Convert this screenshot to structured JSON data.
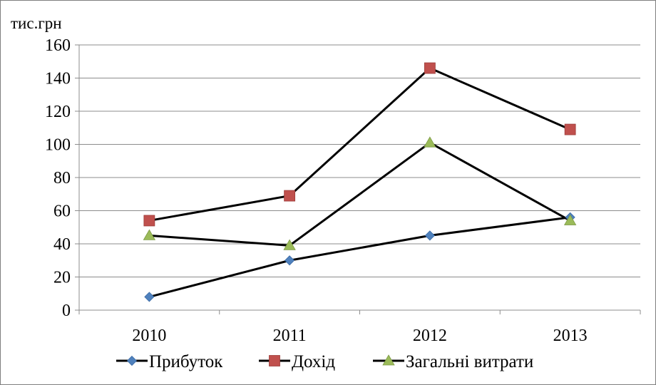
{
  "chart_data": {
    "type": "line",
    "title": "",
    "xlabel": "",
    "ylabel": "тис.грн",
    "categories": [
      "2010",
      "2011",
      "2012",
      "2013"
    ],
    "ylim": [
      0,
      160
    ],
    "yticks": [
      0,
      20,
      40,
      60,
      80,
      100,
      120,
      140,
      160
    ],
    "ytick_labels": [
      "0",
      "20",
      "40",
      "60",
      "80",
      "100",
      "120",
      "140",
      "160"
    ],
    "grid": true,
    "legend_position": "bottom",
    "series": [
      {
        "name": "Прибуток",
        "values": [
          8,
          30,
          45,
          56
        ],
        "marker": "diamond",
        "marker_color": "#4f81bd",
        "line_color": "#000000"
      },
      {
        "name": "Дохід",
        "values": [
          54,
          69,
          146,
          109
        ],
        "marker": "square",
        "marker_color": "#c0504d",
        "line_color": "#000000"
      },
      {
        "name": "Загальні витрати",
        "values": [
          45,
          39,
          101,
          54
        ],
        "marker": "triangle",
        "marker_color": "#9bbb59",
        "line_color": "#000000"
      }
    ]
  }
}
